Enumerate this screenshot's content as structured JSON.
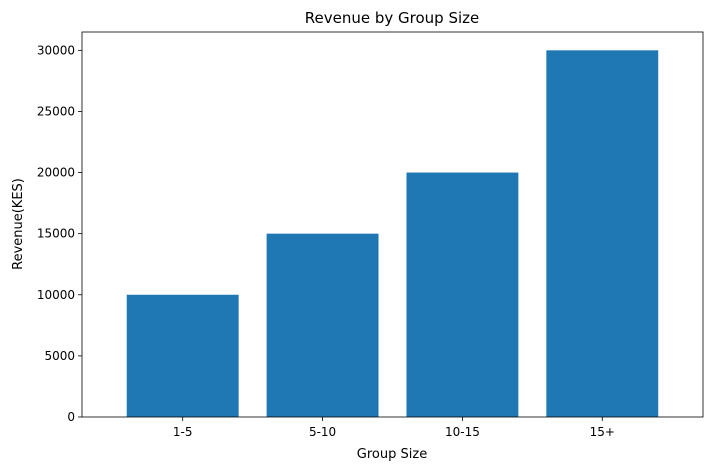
{
  "chart_data": {
    "type": "bar",
    "title": "Revenue by Group Size",
    "xlabel": "Group Size",
    "ylabel": "Revenue(KES)",
    "categories": [
      "1-5",
      "5-10",
      "10-15",
      "15+"
    ],
    "values": [
      10000,
      15000,
      20000,
      30000
    ],
    "ylim": [
      0,
      31500
    ],
    "yticks": [
      0,
      5000,
      10000,
      15000,
      20000,
      25000,
      30000
    ],
    "grid": false,
    "legend": "none",
    "bar_color": "#1f77b4"
  }
}
